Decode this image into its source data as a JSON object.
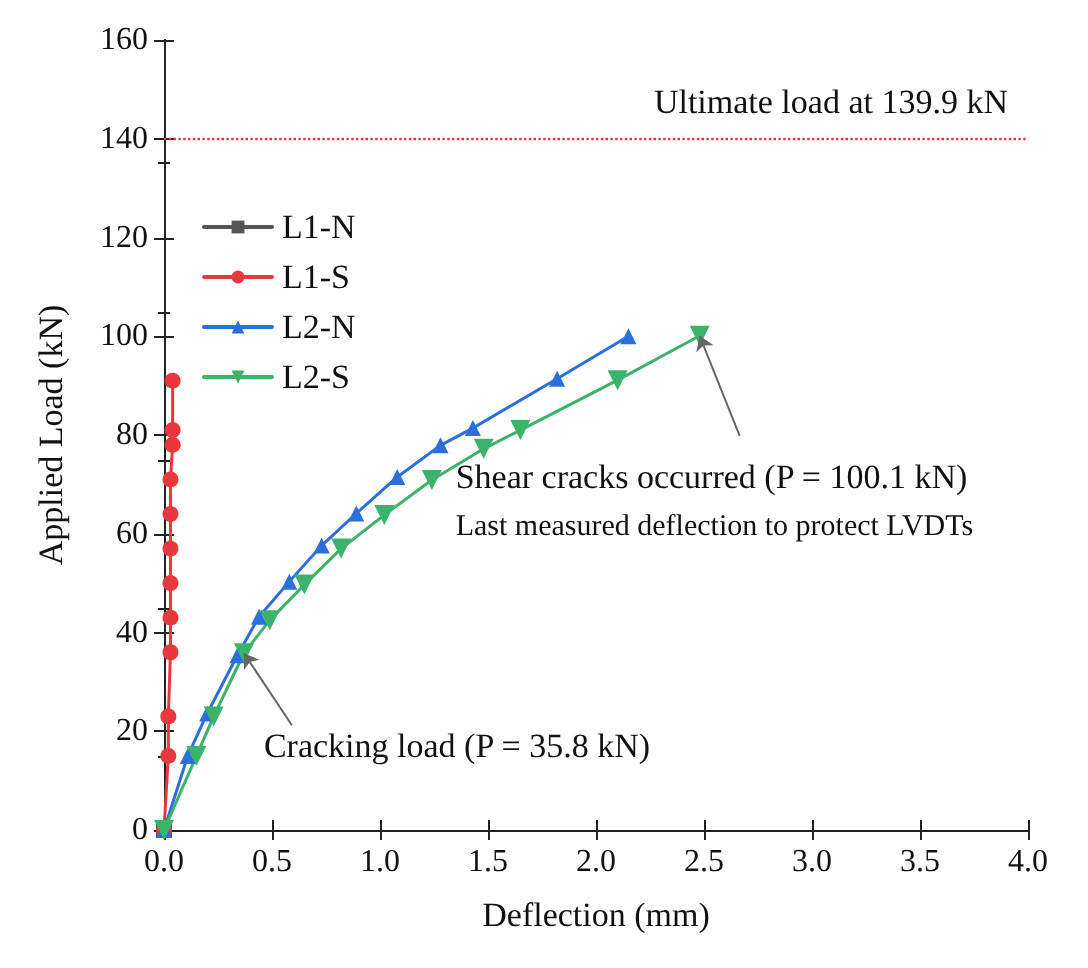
{
  "chart_data": {
    "type": "line",
    "xlabel": "Deflection (mm)",
    "ylabel": "Applied Load (kN)",
    "xlim": [
      0,
      4
    ],
    "xticks": [
      {
        "value": 0,
        "label": "0.0"
      },
      {
        "value": 0.5,
        "label": "0.5"
      },
      {
        "value": 1,
        "label": "1.0"
      },
      {
        "value": 1.5,
        "label": "1.5"
      },
      {
        "value": 2,
        "label": "2.0"
      },
      {
        "value": 2.5,
        "label": "2.5"
      },
      {
        "value": 3,
        "label": "3.0"
      },
      {
        "value": 3.5,
        "label": "3.5"
      },
      {
        "value": 4,
        "label": "4.0"
      }
    ],
    "ylim": [
      0,
      160
    ],
    "yticks": [
      0,
      20,
      40,
      60,
      80,
      100,
      120,
      140,
      160
    ],
    "grid": false,
    "legend": "top left",
    "series": [
      {
        "name": "L1-N",
        "color": "#555555",
        "marker": "square",
        "x": [
          0
        ],
        "values": [
          0
        ]
      },
      {
        "name": "L1-S",
        "color": "#e8383d",
        "marker": "circle",
        "x": [
          0,
          0.02,
          0.02,
          0.03,
          0.03,
          0.03,
          0.03,
          0.03,
          0.03,
          0.04,
          0.04,
          0.04
        ],
        "values": [
          0,
          15,
          23,
          36,
          43,
          50,
          57,
          64,
          71,
          78,
          81,
          91
        ]
      },
      {
        "name": "L2-N",
        "color": "#2a6fdb",
        "marker": "triangle",
        "x": [
          0,
          0.11,
          0.2,
          0.34,
          0.44,
          0.58,
          0.73,
          0.89,
          1.08,
          1.28,
          1.43,
          1.82,
          2.15
        ],
        "values": [
          0,
          15,
          23.6,
          35.4,
          43.2,
          50.3,
          57.6,
          64.1,
          71.5,
          77.9,
          81.4,
          91.4,
          100
        ]
      },
      {
        "name": "L2-S",
        "color": "#3cb36b",
        "marker": "triangle-down",
        "x": [
          0,
          0.15,
          0.23,
          0.37,
          0.49,
          0.65,
          0.82,
          1.02,
          1.24,
          1.48,
          1.65,
          2.1,
          2.48
        ],
        "values": [
          0,
          15,
          23,
          35.8,
          42.5,
          49.7,
          57,
          63.8,
          70.9,
          77.2,
          81,
          91.1,
          100.1
        ]
      }
    ],
    "ref_lines": [
      {
        "axis": "y",
        "value": 139.9,
        "label": "Ultimate load at 139.9 kN",
        "color": "#e8383d",
        "line_style": "dotted"
      }
    ],
    "annotations": [
      {
        "text": "Cracking load (P = 35.8 kN)",
        "x": 0.37,
        "y": 35.8
      },
      {
        "text": "Shear cracks occurred (P = 100.1 kN)",
        "x": 2.48,
        "y": 100.1
      },
      "Last measured deflection to protect LVDTs"
    ]
  }
}
